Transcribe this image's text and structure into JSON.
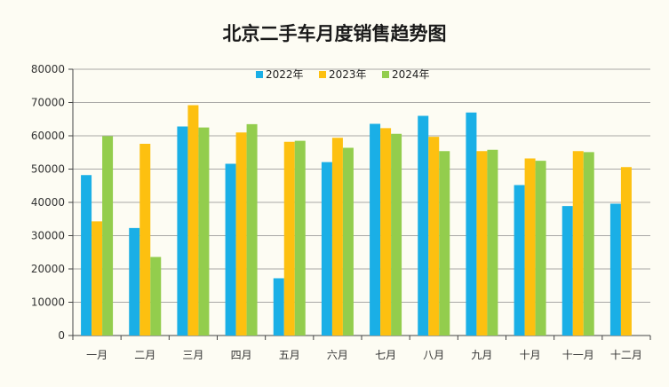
{
  "chart_data": {
    "type": "bar",
    "title": "北京二手车月度销售趋势图",
    "xlabel": "",
    "ylabel": "",
    "categories": [
      "一月",
      "二月",
      "三月",
      "四月",
      "五月",
      "六月",
      "七月",
      "八月",
      "九月",
      "十月",
      "十一月",
      "十二月"
    ],
    "series": [
      {
        "name": "2022年",
        "color": "#1aafe6",
        "values": [
          48200,
          32300,
          62800,
          51600,
          17200,
          52100,
          63600,
          66000,
          67000,
          45200,
          38900,
          39600
        ]
      },
      {
        "name": "2023年",
        "color": "#fdc010",
        "values": [
          34300,
          57600,
          69200,
          61000,
          58200,
          59400,
          62300,
          59700,
          55400,
          53200,
          55400,
          50600
        ]
      },
      {
        "name": "2024年",
        "color": "#93cd4d",
        "values": [
          59900,
          23600,
          62500,
          63500,
          58500,
          56400,
          60600,
          55400,
          55800,
          52500,
          55100,
          null
        ]
      }
    ],
    "ylim": [
      0,
      80000
    ],
    "yticks": [
      0,
      10000,
      20000,
      30000,
      40000,
      50000,
      60000,
      70000,
      80000
    ],
    "grid": true,
    "legend_position": "top-center"
  }
}
